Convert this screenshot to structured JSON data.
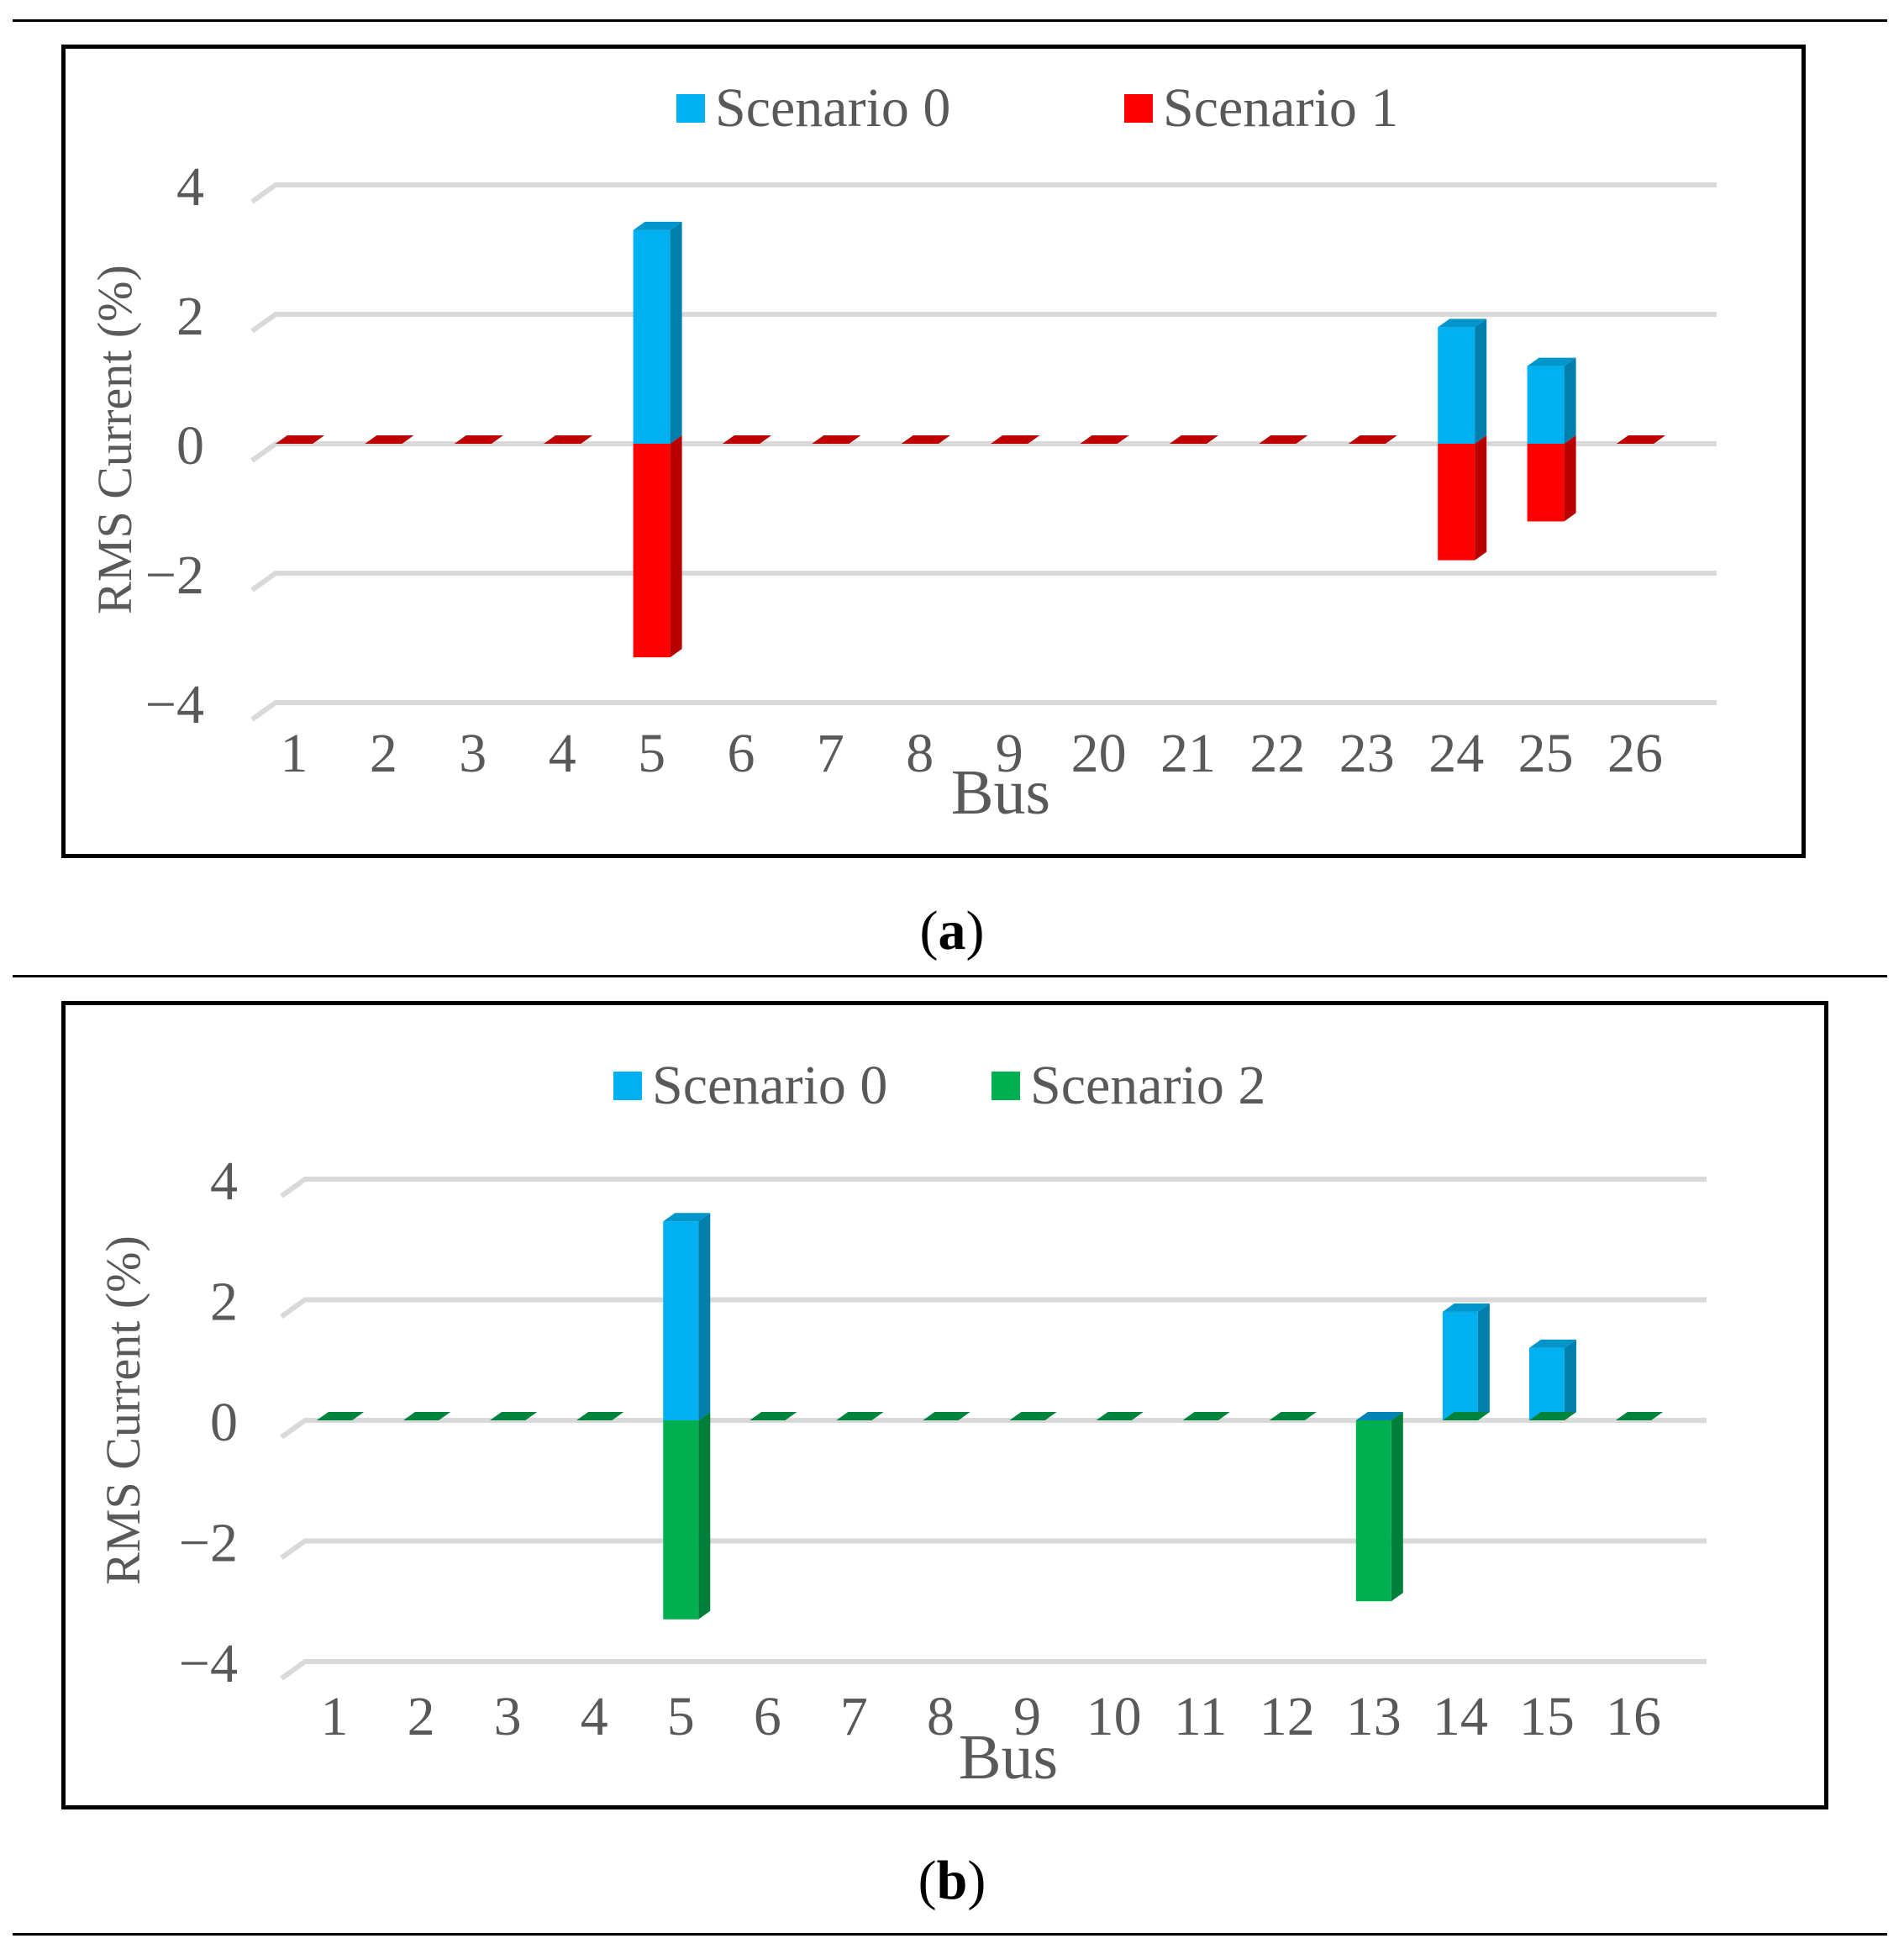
{
  "panels": [
    {
      "caption_letter": "a",
      "chart_data": {
        "type": "bar",
        "title": "",
        "xlabel": "Bus",
        "ylabel": "RMS Current (%)",
        "ylim": [
          -4,
          4
        ],
        "yticks": [
          -4,
          -2,
          0,
          2,
          4
        ],
        "ytick_labels": [
          "−4",
          "−2",
          "0",
          "2",
          "4"
        ],
        "grid": true,
        "legend_position": "top-center",
        "categories": [
          "1",
          "2",
          "3",
          "4",
          "5",
          "6",
          "7",
          "8",
          "9",
          "20",
          "21",
          "22",
          "23",
          "24",
          "25",
          "26"
        ],
        "series": [
          {
            "name": "Scenario 0",
            "color": "#00b0f0",
            "values": [
              0,
              0,
              0,
              0,
              3.3,
              0,
              0,
              0,
              0,
              0,
              0,
              0,
              0,
              1.8,
              1.2,
              0
            ]
          },
          {
            "name": "Scenario 1",
            "color": "#ff0000",
            "values": [
              0,
              0,
              0,
              0,
              -3.3,
              0,
              0,
              0,
              0,
              0,
              0,
              0,
              0,
              -1.8,
              -1.2,
              0
            ]
          }
        ]
      }
    },
    {
      "caption_letter": "b",
      "chart_data": {
        "type": "bar",
        "title": "",
        "xlabel": "Bus",
        "ylabel": "RMS Current (%)",
        "ylim": [
          -4,
          4
        ],
        "yticks": [
          -4,
          -2,
          0,
          2,
          4
        ],
        "ytick_labels": [
          "−4",
          "−2",
          "0",
          "2",
          "4"
        ],
        "grid": true,
        "legend_position": "top-center",
        "categories": [
          "1",
          "2",
          "3",
          "4",
          "5",
          "6",
          "7",
          "8",
          "9",
          "10",
          "11",
          "12",
          "13",
          "14",
          "15",
          "16"
        ],
        "series": [
          {
            "name": "Scenario 0",
            "color": "#00b0f0",
            "values": [
              0,
              0,
              0,
              0,
              3.3,
              0,
              0,
              0,
              0,
              0,
              0,
              0,
              0,
              1.8,
              1.2,
              0
            ]
          },
          {
            "name": "Scenario 2",
            "color": "#00b050",
            "values": [
              0,
              0,
              0,
              0,
              -3.3,
              0,
              0,
              0,
              0,
              0,
              0,
              0,
              -3.0,
              0,
              0,
              0
            ]
          }
        ]
      }
    }
  ]
}
